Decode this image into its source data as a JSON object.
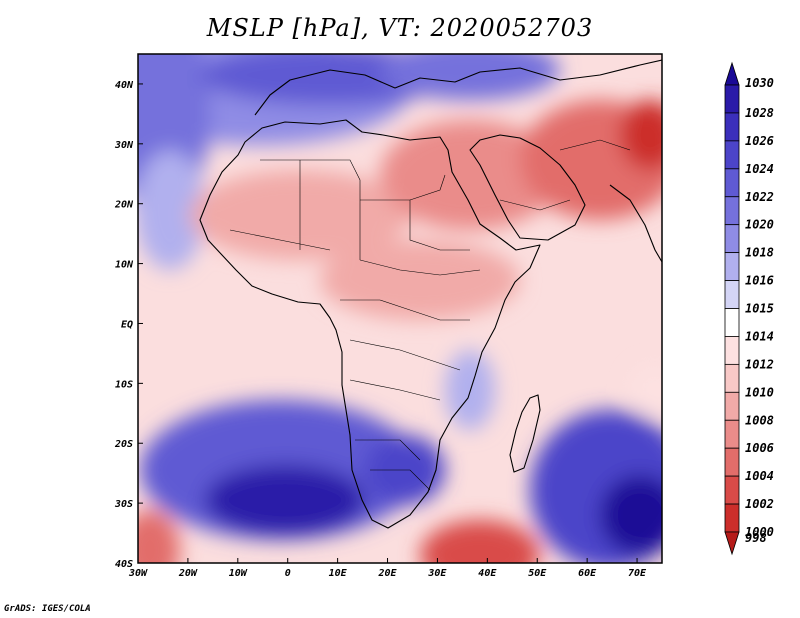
{
  "title": "MSLP [hPa], VT: 2020052703",
  "credit": "GrADS: IGES/COLA",
  "map": {
    "lon_range": [
      -30,
      75
    ],
    "lat_range": [
      -40,
      45
    ],
    "lon_ticks": [
      {
        "value": -30,
        "label": "30W"
      },
      {
        "value": -20,
        "label": "20W"
      },
      {
        "value": -10,
        "label": "10W"
      },
      {
        "value": 0,
        "label": "0"
      },
      {
        "value": 10,
        "label": "10E"
      },
      {
        "value": 20,
        "label": "20E"
      },
      {
        "value": 30,
        "label": "30E"
      },
      {
        "value": 40,
        "label": "40E"
      },
      {
        "value": 50,
        "label": "50E"
      },
      {
        "value": 60,
        "label": "60E"
      },
      {
        "value": 70,
        "label": "70E"
      }
    ],
    "lat_ticks": [
      {
        "value": 40,
        "label": "40N"
      },
      {
        "value": 30,
        "label": "30N"
      },
      {
        "value": 20,
        "label": "20N"
      },
      {
        "value": 10,
        "label": "10N"
      },
      {
        "value": 0,
        "label": "EQ"
      },
      {
        "value": -10,
        "label": "10S"
      },
      {
        "value": -20,
        "label": "20S"
      },
      {
        "value": -30,
        "label": "30S"
      },
      {
        "value": -40,
        "label": "40S"
      }
    ],
    "features": [
      {
        "name": "high-pressure-south-atlantic",
        "lon": 0,
        "lat": -30,
        "value": 1028
      },
      {
        "name": "high-pressure-indian-ocean",
        "lon": 70,
        "lat": -30,
        "value": 1030
      },
      {
        "name": "high-pressure-mediterranean",
        "lon": 15,
        "lat": 41,
        "value": 1024
      },
      {
        "name": "high-pressure-south-africa",
        "lon": 25,
        "lat": -27,
        "value": 1024
      },
      {
        "name": "low-pressure-pakistan",
        "lon": 70,
        "lat": 32,
        "value": 1000
      },
      {
        "name": "low-pressure-mozambique-channel-south",
        "lon": 38,
        "lat": -39,
        "value": 1002
      },
      {
        "name": "low-pressure-southwest-corner",
        "lon": -28,
        "lat": -38,
        "value": 1004
      },
      {
        "name": "low-pressure-arabia",
        "lon": 45,
        "lat": 25,
        "value": 1008
      }
    ]
  },
  "colorbar": {
    "levels": [
      {
        "label": "1030",
        "color": "#1a0a96"
      },
      {
        "label": "1028",
        "color": "#2a1aa8"
      },
      {
        "label": "1026",
        "color": "#3b2fbb"
      },
      {
        "label": "1024",
        "color": "#4c44c9"
      },
      {
        "label": "1022",
        "color": "#5f5ad3"
      },
      {
        "label": "1020",
        "color": "#7571dc"
      },
      {
        "label": "1018",
        "color": "#8f8ce5"
      },
      {
        "label": "1016",
        "color": "#b1b0ee"
      },
      {
        "label": "1015",
        "color": "#d4d5f6"
      },
      {
        "label": "1014",
        "color": "#ffffff"
      },
      {
        "label": "1012",
        "color": "#fde1e1"
      },
      {
        "label": "1010",
        "color": "#f8c9c7"
      },
      {
        "label": "1008",
        "color": "#f1aaa8"
      },
      {
        "label": "1006",
        "color": "#ea8c8a"
      },
      {
        "label": "1004",
        "color": "#e26d6a"
      },
      {
        "label": "1002",
        "color": "#d94b48"
      },
      {
        "label": "1000",
        "color": "#cc2e2b"
      },
      {
        "label": "998",
        "color": "#b51b19"
      }
    ]
  }
}
